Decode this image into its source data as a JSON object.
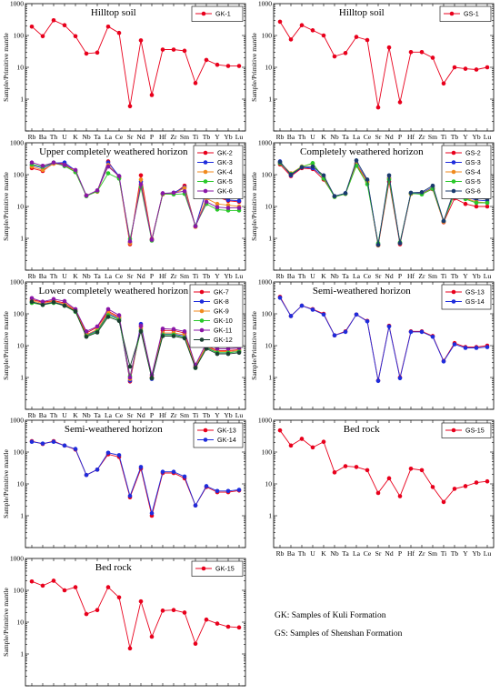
{
  "chart_data": [
    {
      "type": "line",
      "title": "Hilltop soil",
      "ylabel": "Sample/Primitive mantle",
      "yscale": "log",
      "ylim": [
        0.1,
        1000
      ],
      "categories": [
        "Rb",
        "Ba",
        "Th",
        "U",
        "K",
        "Nb",
        "Ta",
        "La",
        "Ce",
        "Sr",
        "Nd",
        "P",
        "Hf",
        "Zr",
        "Sm",
        "Ti",
        "Tb",
        "Y",
        "Yb",
        "Lu"
      ],
      "series": [
        {
          "name": "GK-1",
          "color": "#e8001c",
          "values": [
            190,
            95,
            300,
            210,
            95,
            27,
            29,
            190,
            120,
            0.6,
            70,
            1.35,
            36,
            36,
            33,
            3.2,
            17,
            12,
            11,
            11
          ]
        }
      ]
    },
    {
      "type": "line",
      "title": "Hilltop soil",
      "ylabel": "Sample/Primitive mantle",
      "yscale": "log",
      "ylim": [
        0.1,
        1000
      ],
      "categories": [
        "Rb",
        "Ba",
        "Th",
        "U",
        "K",
        "Nb",
        "Ta",
        "La",
        "Ce",
        "Sr",
        "Nd",
        "P",
        "Hf",
        "Zr",
        "Sm",
        "Ti",
        "Tb",
        "Y",
        "Yb",
        "Lu"
      ],
      "series": [
        {
          "name": "GS-1",
          "color": "#e8001c",
          "values": [
            270,
            75,
            210,
            145,
            100,
            22,
            28,
            90,
            72,
            0.55,
            42,
            0.8,
            30,
            30,
            20,
            3.1,
            10,
            9,
            8.5,
            10
          ]
        }
      ]
    },
    {
      "type": "line",
      "title": "Upper completely weathered horizon",
      "ylabel": "Sample/Primitive mantle",
      "yscale": "log",
      "ylim": [
        0.1,
        1000
      ],
      "categories": [
        "Rb",
        "Ba",
        "Th",
        "U",
        "K",
        "Nb",
        "Ta",
        "La",
        "Ce",
        "Sr",
        "Nd",
        "P",
        "Hf",
        "Zr",
        "Sm",
        "Ti",
        "Tb",
        "Y",
        "Yb",
        "Lu"
      ],
      "series": [
        {
          "name": "GK-2",
          "color": "#e8001c",
          "values": [
            160,
            130,
            230,
            220,
            120,
            22,
            30,
            260,
            80,
            0.65,
            95,
            0.95,
            25,
            25,
            45,
            2.3,
            30,
            20,
            15,
            14
          ]
        },
        {
          "name": "GK-3",
          "color": "#1e2cdc",
          "values": [
            200,
            160,
            230,
            240,
            135,
            22,
            30,
            240,
            90,
            0.75,
            60,
            0.9,
            25,
            27,
            40,
            2.4,
            32,
            22,
            16,
            15
          ]
        },
        {
          "name": "GK-4",
          "color": "#f08a1e",
          "values": [
            180,
            140,
            220,
            200,
            125,
            22,
            29,
            200,
            85,
            0.7,
            70,
            0.9,
            24,
            25,
            38,
            2.3,
            18,
            12,
            11,
            10
          ]
        },
        {
          "name": "GK-5",
          "color": "#2ac82a",
          "values": [
            210,
            175,
            240,
            185,
            120,
            21,
            30,
            110,
            75,
            0.95,
            40,
            0.85,
            25,
            24,
            25,
            2.5,
            12,
            8,
            7.5,
            7.5
          ]
        },
        {
          "name": "GK-6",
          "color": "#8a16a6",
          "values": [
            240,
            190,
            240,
            200,
            140,
            22,
            32,
            180,
            90,
            0.8,
            50,
            0.9,
            26,
            27,
            30,
            2.4,
            14,
            9.5,
            9,
            9
          ]
        }
      ]
    },
    {
      "type": "line",
      "title": "Completely weathered horizon",
      "ylabel": "Sample/Primitive mantle",
      "yscale": "log",
      "ylim": [
        0.1,
        1000
      ],
      "categories": [
        "Rb",
        "Ba",
        "Th",
        "U",
        "K",
        "Nb",
        "Ta",
        "La",
        "Ce",
        "Sr",
        "Nd",
        "P",
        "Hf",
        "Zr",
        "Sm",
        "Ti",
        "Tb",
        "Y",
        "Yb",
        "Lu"
      ],
      "series": [
        {
          "name": "GS-2",
          "color": "#e8001c",
          "values": [
            210,
            90,
            160,
            150,
            70,
            21,
            25,
            200,
            60,
            0.6,
            60,
            0.65,
            25,
            25,
            35,
            3.2,
            18,
            12,
            10,
            10
          ]
        },
        {
          "name": "GS-3",
          "color": "#1e2cdc",
          "values": [
            260,
            95,
            170,
            160,
            85,
            21,
            26,
            230,
            65,
            0.65,
            80,
            0.7,
            26,
            26,
            40,
            3.4,
            30,
            20,
            16,
            15
          ]
        },
        {
          "name": "GS-4",
          "color": "#f08a1e",
          "values": [
            240,
            110,
            180,
            220,
            80,
            20,
            25,
            220,
            60,
            0.6,
            75,
            0.7,
            25,
            25,
            38,
            3.3,
            27,
            18,
            14,
            13
          ]
        },
        {
          "name": "GS-5",
          "color": "#2ac82a",
          "values": [
            230,
            105,
            175,
            230,
            75,
            20,
            25,
            190,
            50,
            0.7,
            70,
            0.75,
            26,
            24,
            36,
            3.5,
            25,
            17,
            13,
            13
          ]
        },
        {
          "name": "GS-6",
          "color": "#1a3a6e",
          "values": [
            250,
            100,
            170,
            180,
            95,
            21,
            26,
            280,
            70,
            0.62,
            95,
            0.7,
            27,
            28,
            45,
            3.5,
            35,
            24,
            18,
            17
          ]
        }
      ]
    },
    {
      "type": "line",
      "title": "Lower completely weathered horizon",
      "ylabel": "Sample/Primitive mantle",
      "yscale": "log",
      "ylim": [
        0.1,
        1000
      ],
      "categories": [
        "Rb",
        "Ba",
        "Th",
        "U",
        "K",
        "Nb",
        "Ta",
        "La",
        "Ce",
        "Sr",
        "Nd",
        "P",
        "Hf",
        "Zr",
        "Sm",
        "Ti",
        "Tb",
        "Y",
        "Yb",
        "Lu"
      ],
      "series": [
        {
          "name": "GK-7",
          "color": "#e8001c",
          "values": [
            280,
            230,
            260,
            220,
            130,
            25,
            38,
            120,
            80,
            0.75,
            40,
            1.0,
            30,
            30,
            25,
            2.2,
            10,
            7,
            7,
            7.5
          ]
        },
        {
          "name": "GK-8",
          "color": "#1e2cdc",
          "values": [
            230,
            200,
            230,
            190,
            120,
            21,
            30,
            100,
            70,
            0.8,
            48,
            0.9,
            23,
            23,
            20,
            2.1,
            9,
            6,
            6,
            6.5
          ]
        },
        {
          "name": "GK-9",
          "color": "#f08a1e",
          "values": [
            260,
            210,
            250,
            200,
            125,
            22,
            32,
            110,
            75,
            0.9,
            35,
            1.0,
            25,
            25,
            22,
            2.2,
            9.5,
            6.5,
            6.5,
            7
          ]
        },
        {
          "name": "GK-10",
          "color": "#2ac82a",
          "values": [
            220,
            190,
            220,
            180,
            115,
            20,
            28,
            90,
            65,
            1.1,
            30,
            0.95,
            22,
            22,
            18,
            2.0,
            8.5,
            6,
            6,
            6.5
          ]
        },
        {
          "name": "GK-11",
          "color": "#8a16a6",
          "values": [
            310,
            240,
            290,
            250,
            140,
            28,
            40,
            140,
            90,
            1.0,
            42,
            1.2,
            34,
            33,
            28,
            2.5,
            12,
            8,
            8,
            8.5
          ]
        },
        {
          "name": "GK-12",
          "color": "#1a4030",
          "values": [
            240,
            190,
            230,
            180,
            120,
            19,
            26,
            80,
            60,
            2.2,
            28,
            0.95,
            20,
            20,
            17,
            2.0,
            8,
            5.5,
            5.5,
            6
          ]
        }
      ]
    },
    {
      "type": "line",
      "title": "Semi-weathered horizon",
      "ylabel": "Sample/Primitive mantle",
      "yscale": "log",
      "ylim": [
        0.1,
        1000
      ],
      "categories": [
        "Rb",
        "Ba",
        "Th",
        "U",
        "K",
        "Nb",
        "Ta",
        "La",
        "Ce",
        "Sr",
        "Nd",
        "P",
        "Hf",
        "Zr",
        "Sm",
        "Ti",
        "Tb",
        "Y",
        "Yb",
        "Lu"
      ],
      "series": [
        {
          "name": "GS-13",
          "color": "#e8001c",
          "values": [
            340,
            85,
            180,
            140,
            100,
            21,
            28,
            95,
            60,
            0.8,
            42,
            1.0,
            28,
            28,
            20,
            3.3,
            12,
            9,
            9,
            10
          ]
        },
        {
          "name": "GS-14",
          "color": "#1e2cdc",
          "values": [
            320,
            85,
            180,
            135,
            95,
            21,
            27,
            95,
            58,
            0.78,
            40,
            0.95,
            27,
            27,
            19,
            3.2,
            11,
            8.5,
            8.5,
            9
          ]
        }
      ]
    },
    {
      "type": "line",
      "title": "Semi-weathered horizon",
      "ylabel": "Sample/Primitive mantle",
      "yscale": "log",
      "ylim": [
        0.1,
        1000
      ],
      "categories": [
        "Rb",
        "Ba",
        "Th",
        "U",
        "K",
        "Nb",
        "Ta",
        "La",
        "Ce",
        "Sr",
        "Nd",
        "P",
        "Hf",
        "Zr",
        "Sm",
        "Ti",
        "Tb",
        "Y",
        "Yb",
        "Lu"
      ],
      "series": [
        {
          "name": "GK-13",
          "color": "#e8001c",
          "values": [
            220,
            180,
            220,
            160,
            120,
            19,
            28,
            85,
            70,
            3.8,
            30,
            1.0,
            22,
            22,
            15,
            2.1,
            8,
            5.5,
            5.5,
            6.2
          ]
        },
        {
          "name": "GK-14",
          "color": "#1e2cdc",
          "values": [
            210,
            185,
            210,
            160,
            125,
            19,
            28,
            95,
            80,
            4.2,
            34,
            1.2,
            24,
            24,
            17,
            2.1,
            8.5,
            6,
            6,
            6.5
          ]
        }
      ]
    },
    {
      "type": "line",
      "title": "Bed rock",
      "ylabel": "",
      "yscale": "log",
      "ylim": [
        0.1,
        1000
      ],
      "categories": [
        "Rb",
        "Ba",
        "Th",
        "U",
        "K",
        "Nb",
        "Ta",
        "La",
        "Ce",
        "Sr",
        "Nd",
        "P",
        "Hf",
        "Zr",
        "Sm",
        "Ti",
        "Tb",
        "Y",
        "Yb",
        "Lu"
      ],
      "series": [
        {
          "name": "GS-15",
          "color": "#e8001c",
          "values": [
            480,
            160,
            260,
            140,
            210,
            23,
            36,
            34,
            27,
            5.2,
            15,
            4.1,
            30,
            27,
            8,
            2.7,
            7,
            8.5,
            11,
            12
          ]
        }
      ]
    },
    {
      "type": "line",
      "title": "Bed rock",
      "ylabel": "Sample/Primitive mantle",
      "yscale": "log",
      "ylim": [
        0.1,
        1000
      ],
      "categories": [
        "Rb",
        "Ba",
        "Th",
        "U",
        "K",
        "Nb",
        "Ta",
        "La",
        "Ce",
        "Sr",
        "Nd",
        "P",
        "Hf",
        "Zr",
        "Sm",
        "Ti",
        "Tb",
        "Y",
        "Yb",
        "Lu"
      ],
      "series": [
        {
          "name": "GK-15",
          "color": "#e8001c",
          "values": [
            190,
            140,
            200,
            100,
            125,
            18,
            24,
            125,
            60,
            1.5,
            45,
            3.5,
            23,
            24,
            20,
            2.1,
            12,
            9,
            7.2,
            6.8
          ]
        }
      ]
    }
  ],
  "notes": {
    "gk": "GK: Samples of Kuli Formation",
    "gs": "GS: Samples of Shenshan Formation"
  },
  "yticks": [
    "1",
    "10",
    "100",
    "1000"
  ]
}
